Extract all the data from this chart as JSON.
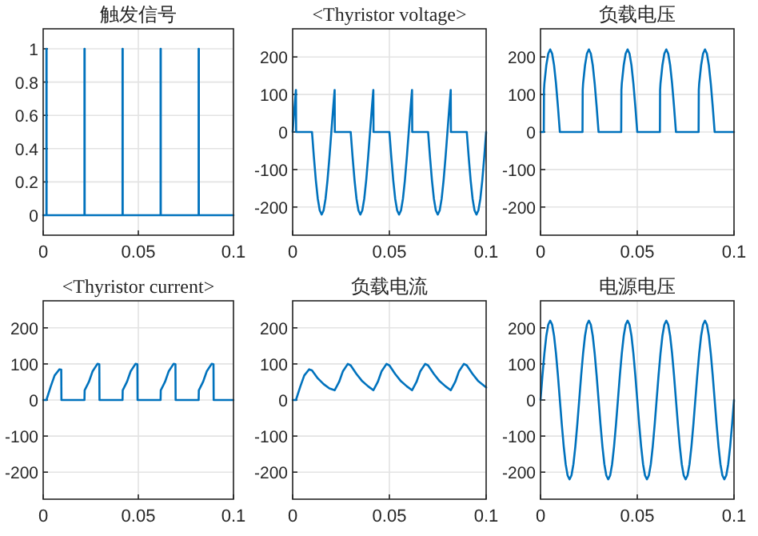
{
  "chart_data": [
    {
      "type": "line",
      "title": "触发信号",
      "xlim": [
        0,
        0.1
      ],
      "ylim": [
        -0.12,
        1.12
      ],
      "xticks": [
        0,
        0.05,
        0.1
      ],
      "yticks": [
        0,
        0.2,
        0.4,
        0.6,
        0.8,
        1
      ],
      "grid": true,
      "series": [
        {
          "color": "#0072bd",
          "x": [
            0,
            0.0017,
            0.0017,
            0.0018,
            0.0018,
            0.02,
            0.0217,
            0.0217,
            0.0218,
            0.0218,
            0.04,
            0.0417,
            0.0417,
            0.0418,
            0.0418,
            0.06,
            0.0617,
            0.0617,
            0.0618,
            0.0618,
            0.08,
            0.0817,
            0.0817,
            0.0818,
            0.0818,
            0.1
          ],
          "values": [
            0,
            0,
            1,
            1,
            0,
            0,
            0,
            1,
            1,
            0,
            0,
            0,
            1,
            1,
            0,
            0,
            0,
            1,
            1,
            0,
            0,
            0,
            1,
            1,
            0,
            0
          ]
        }
      ]
    },
    {
      "type": "line",
      "title": "<Thyristor voltage>",
      "xlim": [
        0,
        0.1
      ],
      "ylim": [
        -275,
        275
      ],
      "xticks": [
        0,
        0.05,
        0.1
      ],
      "yticks": [
        -200,
        -100,
        0,
        100,
        200
      ],
      "grid": true,
      "series": [
        {
          "color": "#0072bd",
          "x": [
            0,
            0.001,
            0.0017,
            0.0018,
            0.01,
            0.011,
            0.012,
            0.013,
            0.014,
            0.015,
            0.016,
            0.017,
            0.018,
            0.019,
            0.02,
            0.021,
            0.0217,
            0.0218,
            0.03,
            0.031,
            0.032,
            0.033,
            0.034,
            0.035,
            0.036,
            0.037,
            0.038,
            0.039,
            0.04,
            0.041,
            0.0417,
            0.0418,
            0.05,
            0.051,
            0.052,
            0.053,
            0.054,
            0.055,
            0.056,
            0.057,
            0.058,
            0.059,
            0.06,
            0.061,
            0.0617,
            0.0618,
            0.07,
            0.071,
            0.072,
            0.073,
            0.074,
            0.075,
            0.076,
            0.077,
            0.078,
            0.079,
            0.08,
            0.081,
            0.0817,
            0.0818,
            0.09,
            0.091,
            0.092,
            0.093,
            0.094,
            0.095,
            0.096,
            0.097,
            0.098,
            0.099,
            0.1
          ],
          "values": [
            0,
            68,
            112,
            0,
            0,
            -68,
            -129,
            -178,
            -209,
            -220,
            -209,
            -178,
            -129,
            -68,
            0,
            68,
            112,
            0,
            0,
            -68,
            -129,
            -178,
            -209,
            -220,
            -209,
            -178,
            -129,
            -68,
            0,
            68,
            112,
            0,
            0,
            -68,
            -129,
            -178,
            -209,
            -220,
            -209,
            -178,
            -129,
            -68,
            0,
            68,
            112,
            0,
            0,
            -68,
            -129,
            -178,
            -209,
            -220,
            -209,
            -178,
            -129,
            -68,
            0,
            68,
            112,
            0,
            0,
            -68,
            -129,
            -178,
            -209,
            -220,
            -209,
            -178,
            -129,
            -68,
            0
          ]
        }
      ]
    },
    {
      "type": "line",
      "title": "负载电压",
      "xlim": [
        0,
        0.1
      ],
      "ylim": [
        -275,
        275
      ],
      "xticks": [
        0,
        0.05,
        0.1
      ],
      "yticks": [
        -200,
        -100,
        0,
        100,
        200
      ],
      "grid": true,
      "series": [
        {
          "color": "#0072bd",
          "x": [
            0,
            0.0017,
            0.0018,
            0.002,
            0.003,
            0.004,
            0.005,
            0.006,
            0.007,
            0.008,
            0.009,
            0.01,
            0.02,
            0.0217,
            0.0218,
            0.022,
            0.023,
            0.024,
            0.025,
            0.026,
            0.027,
            0.028,
            0.029,
            0.03,
            0.04,
            0.0417,
            0.0418,
            0.042,
            0.043,
            0.044,
            0.045,
            0.046,
            0.047,
            0.048,
            0.049,
            0.05,
            0.06,
            0.0617,
            0.0618,
            0.062,
            0.063,
            0.064,
            0.065,
            0.066,
            0.067,
            0.068,
            0.069,
            0.07,
            0.08,
            0.0817,
            0.0818,
            0.082,
            0.083,
            0.084,
            0.085,
            0.086,
            0.087,
            0.088,
            0.089,
            0.09,
            0.1
          ],
          "values": [
            0,
            0,
            112,
            129,
            178,
            209,
            220,
            209,
            178,
            129,
            68,
            0,
            0,
            0,
            112,
            129,
            178,
            209,
            220,
            209,
            178,
            129,
            68,
            0,
            0,
            0,
            112,
            129,
            178,
            209,
            220,
            209,
            178,
            129,
            68,
            0,
            0,
            0,
            112,
            129,
            178,
            209,
            220,
            209,
            178,
            129,
            68,
            0,
            0,
            0,
            112,
            129,
            178,
            209,
            220,
            209,
            178,
            129,
            68,
            0,
            0
          ]
        }
      ]
    },
    {
      "type": "line",
      "title": "<Thyristor current>",
      "xlim": [
        0,
        0.1
      ],
      "ylim": [
        -275,
        275
      ],
      "xticks": [
        0,
        0.05,
        0.1
      ],
      "yticks": [
        -200,
        -100,
        0,
        100,
        200
      ],
      "grid": true,
      "series": [
        {
          "color": "#0072bd",
          "x": [
            0,
            0.0017,
            0.004,
            0.006,
            0.0085,
            0.0095,
            0.0096,
            0.0217,
            0.0218,
            0.024,
            0.026,
            0.0285,
            0.0295,
            0.0296,
            0.0417,
            0.0418,
            0.044,
            0.046,
            0.0485,
            0.0495,
            0.0496,
            0.0617,
            0.0618,
            0.064,
            0.066,
            0.0685,
            0.0695,
            0.0696,
            0.0817,
            0.0818,
            0.084,
            0.086,
            0.0885,
            0.0895,
            0.0896,
            0.1
          ],
          "values": [
            0,
            0,
            38,
            68,
            85,
            84,
            0,
            0,
            27,
            50,
            80,
            100,
            99,
            0,
            0,
            27,
            50,
            80,
            100,
            99,
            0,
            0,
            27,
            50,
            80,
            100,
            99,
            0,
            0,
            27,
            50,
            80,
            100,
            99,
            0,
            0
          ]
        }
      ]
    },
    {
      "type": "line",
      "title": "负载电流",
      "xlim": [
        0,
        0.1
      ],
      "ylim": [
        -275,
        275
      ],
      "xticks": [
        0,
        0.05,
        0.1
      ],
      "yticks": [
        -200,
        -100,
        0,
        100,
        200
      ],
      "grid": true,
      "series": [
        {
          "color": "#0072bd",
          "x": [
            0,
            0.0017,
            0.004,
            0.006,
            0.0085,
            0.01,
            0.013,
            0.016,
            0.019,
            0.0217,
            0.024,
            0.026,
            0.0285,
            0.03,
            0.033,
            0.036,
            0.039,
            0.0417,
            0.044,
            0.046,
            0.0485,
            0.05,
            0.053,
            0.056,
            0.059,
            0.0617,
            0.064,
            0.066,
            0.0685,
            0.07,
            0.073,
            0.076,
            0.079,
            0.0817,
            0.084,
            0.086,
            0.0885,
            0.09,
            0.093,
            0.096,
            0.1
          ],
          "values": [
            0,
            0,
            38,
            68,
            85,
            82,
            60,
            44,
            32,
            27,
            50,
            80,
            100,
            96,
            72,
            52,
            38,
            27,
            50,
            80,
            100,
            96,
            72,
            52,
            38,
            27,
            50,
            80,
            100,
            96,
            72,
            52,
            38,
            27,
            50,
            80,
            100,
            96,
            72,
            52,
            35
          ]
        }
      ]
    },
    {
      "type": "line",
      "title": "电源电压",
      "xlim": [
        0,
        0.1
      ],
      "ylim": [
        -275,
        275
      ],
      "xticks": [
        0,
        0.05,
        0.1
      ],
      "yticks": [
        -200,
        -100,
        0,
        100,
        200
      ],
      "grid": true,
      "series": [
        {
          "color": "#0072bd",
          "x": [
            0,
            0.001,
            0.002,
            0.003,
            0.004,
            0.005,
            0.006,
            0.007,
            0.008,
            0.009,
            0.01,
            0.011,
            0.012,
            0.013,
            0.014,
            0.015,
            0.016,
            0.017,
            0.018,
            0.019,
            0.02,
            0.021,
            0.022,
            0.023,
            0.024,
            0.025,
            0.026,
            0.027,
            0.028,
            0.029,
            0.03,
            0.031,
            0.032,
            0.033,
            0.034,
            0.035,
            0.036,
            0.037,
            0.038,
            0.039,
            0.04,
            0.041,
            0.042,
            0.043,
            0.044,
            0.045,
            0.046,
            0.047,
            0.048,
            0.049,
            0.05,
            0.051,
            0.052,
            0.053,
            0.054,
            0.055,
            0.056,
            0.057,
            0.058,
            0.059,
            0.06,
            0.061,
            0.062,
            0.063,
            0.064,
            0.065,
            0.066,
            0.067,
            0.068,
            0.069,
            0.07,
            0.071,
            0.072,
            0.073,
            0.074,
            0.075,
            0.076,
            0.077,
            0.078,
            0.079,
            0.08,
            0.081,
            0.082,
            0.083,
            0.084,
            0.085,
            0.086,
            0.087,
            0.088,
            0.089,
            0.09,
            0.091,
            0.092,
            0.093,
            0.094,
            0.095,
            0.096,
            0.097,
            0.098,
            0.099,
            0.1
          ],
          "values": [
            0,
            68,
            129,
            178,
            209,
            220,
            209,
            178,
            129,
            68,
            0,
            -68,
            -129,
            -178,
            -209,
            -220,
            -209,
            -178,
            -129,
            -68,
            0,
            68,
            129,
            178,
            209,
            220,
            209,
            178,
            129,
            68,
            0,
            -68,
            -129,
            -178,
            -209,
            -220,
            -209,
            -178,
            -129,
            -68,
            0,
            68,
            129,
            178,
            209,
            220,
            209,
            178,
            129,
            68,
            0,
            -68,
            -129,
            -178,
            -209,
            -220,
            -209,
            -178,
            -129,
            -68,
            0,
            68,
            129,
            178,
            209,
            220,
            209,
            178,
            129,
            68,
            0,
            -68,
            -129,
            -178,
            -209,
            -220,
            -209,
            -178,
            -129,
            -68,
            0,
            68,
            129,
            178,
            209,
            220,
            209,
            178,
            129,
            68,
            0,
            -68,
            -129,
            -178,
            -209,
            -220,
            -209,
            -178,
            -129,
            -68,
            0
          ]
        }
      ]
    }
  ]
}
